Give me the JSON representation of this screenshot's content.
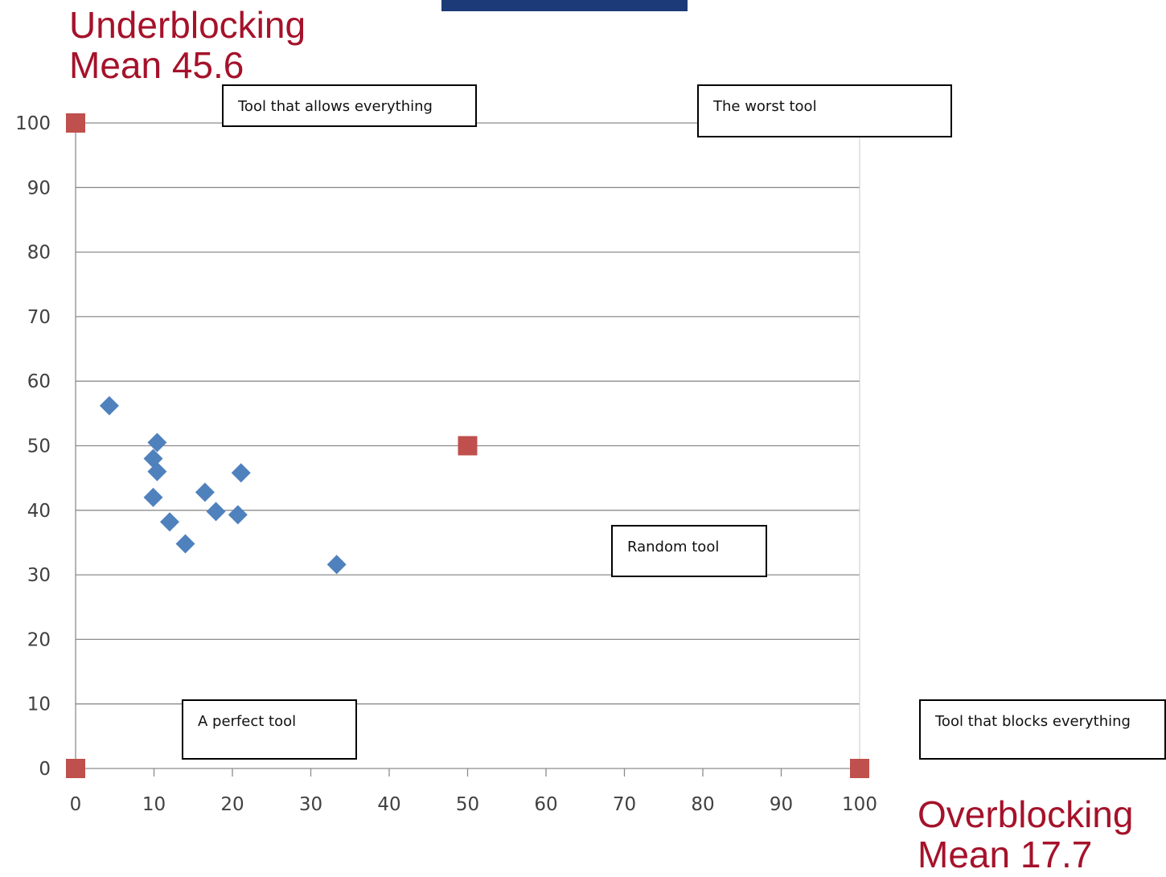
{
  "titles": {
    "y_title_line1": "Underblocking",
    "y_title_line2": "Mean 45.6",
    "x_title_line1": "Overblocking",
    "x_title_line2": "Mean 17.7"
  },
  "callouts": {
    "allows_everything": "Tool that allows everything",
    "worst_tool": "The worst tool",
    "random_tool": "Random tool",
    "perfect_tool": "A perfect tool",
    "blocks_everything": "Tool that blocks everything"
  },
  "colors": {
    "series_tools": "#4f81bd",
    "series_references": "#c0504d",
    "title_text": "#a5122a",
    "gridline": "#8c8c8c",
    "banner": "#1d3a78"
  },
  "chart_data": {
    "type": "scatter",
    "xlim": [
      0,
      100
    ],
    "ylim": [
      0,
      100
    ],
    "x_ticks": [
      0,
      10,
      20,
      30,
      40,
      50,
      60,
      70,
      80,
      90,
      100
    ],
    "y_ticks": [
      0,
      10,
      20,
      30,
      40,
      50,
      60,
      70,
      80,
      90,
      100
    ],
    "grid": "horizontal",
    "legend": "none",
    "xlabel": "Overblocking Mean 17.7",
    "ylabel": "Underblocking Mean 45.6",
    "series": [
      {
        "marker": "diamond",
        "color": "#4f81bd",
        "points": [
          {
            "x": 4.3,
            "y": 56.2
          },
          {
            "x": 10.4,
            "y": 50.5
          },
          {
            "x": 9.9,
            "y": 48.0
          },
          {
            "x": 10.4,
            "y": 46.0
          },
          {
            "x": 9.9,
            "y": 42.0
          },
          {
            "x": 12.0,
            "y": 38.2
          },
          {
            "x": 14.0,
            "y": 34.8
          },
          {
            "x": 16.5,
            "y": 42.8
          },
          {
            "x": 17.9,
            "y": 39.8
          },
          {
            "x": 20.7,
            "y": 39.3
          },
          {
            "x": 21.1,
            "y": 45.8
          },
          {
            "x": 33.3,
            "y": 31.6
          }
        ]
      },
      {
        "marker": "square",
        "color": "#c0504d",
        "points": [
          {
            "x": 0,
            "y": 100
          },
          {
            "x": 0,
            "y": 0
          },
          {
            "x": 50,
            "y": 50
          },
          {
            "x": 100,
            "y": 0
          }
        ]
      }
    ]
  }
}
